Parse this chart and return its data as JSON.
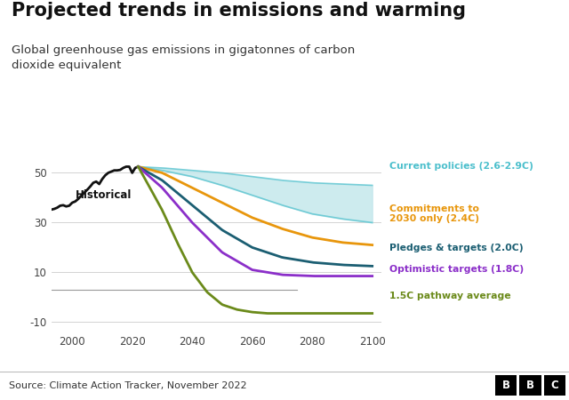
{
  "title": "Projected trends in emissions and warming",
  "subtitle": "Global greenhouse gas emissions in gigatonnes of carbon\ndioxide equivalent",
  "source": "Source: Climate Action Tracker, November 2022",
  "background_color": "#ffffff",
  "xlim": [
    1993,
    2103
  ],
  "ylim": [
    -14,
    60
  ],
  "yticks": [
    -10,
    10,
    30,
    50
  ],
  "xticks": [
    2000,
    2020,
    2040,
    2060,
    2080,
    2100
  ],
  "historical_color": "#111111",
  "current_policies_color": "#4bbfcc",
  "current_policies_fill": "#c5e8ec",
  "commitments_color": "#e8960c",
  "pledges_color": "#1b5e72",
  "optimistic_color": "#8b2fc9",
  "pathway_15_color": "#6b8a1a",
  "zero_line_color": "#999999",
  "footer_bg": "#e0e0e0",
  "label_current": "Current policies (2.6-2.9C)",
  "label_commit": "Commitments to\n2030 only (2.4C)",
  "label_pledges": "Pledges & targets (2.0C)",
  "label_optimistic": "Optimistic targets (1.8C)",
  "label_15c": "1.5C pathway average",
  "label_historical": "Historical"
}
